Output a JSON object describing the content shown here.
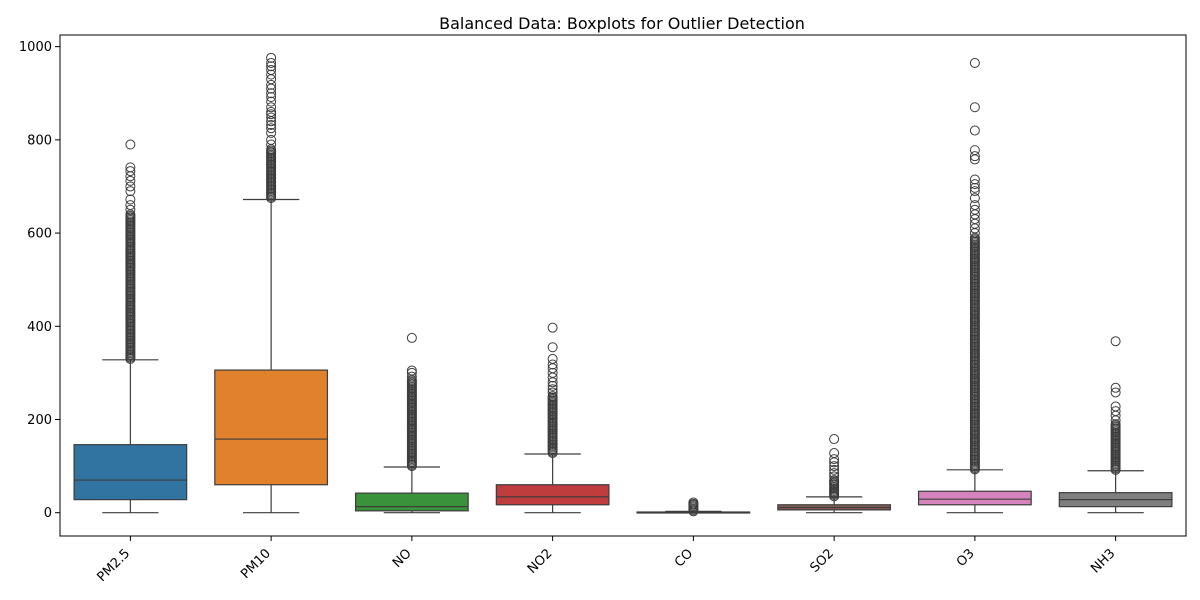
{
  "chart_data": {
    "type": "boxplot",
    "title": "Balanced Data: Boxplots for Outlier Detection",
    "xlabel": "",
    "ylabel": "",
    "ylim": [
      -50,
      1025
    ],
    "yticks": [
      0,
      200,
      400,
      600,
      800,
      1000
    ],
    "categories": [
      "PM2.5",
      "PM10",
      "NO",
      "NO2",
      "CO",
      "SO2",
      "O3",
      "NH3"
    ],
    "grid": false,
    "legend": "none",
    "series": [
      {
        "category": "PM2.5",
        "color": "#3274a1",
        "whisker_low": 0,
        "q1": 28,
        "median": 70,
        "q3": 146,
        "whisker_high": 328,
        "outlier_range": [
          330,
          640
        ],
        "outliers": [
          650,
          660,
          672,
          690,
          700,
          712,
          722,
          733,
          741,
          790
        ]
      },
      {
        "category": "PM10",
        "color": "#e1812c",
        "whisker_low": 0,
        "q1": 60,
        "median": 158,
        "q3": 306,
        "whisker_high": 672,
        "outlier_range": [
          675,
          780
        ],
        "outliers": [
          790,
          800,
          815,
          825,
          832,
          840,
          848,
          855,
          860,
          870,
          882,
          892,
          900,
          910,
          918,
          930,
          940,
          950,
          958,
          965,
          976
        ]
      },
      {
        "category": "NO",
        "color": "#3a923a",
        "whisker_low": 0,
        "q1": 4,
        "median": 13,
        "q3": 42,
        "whisker_high": 98,
        "outlier_range": [
          100,
          285
        ],
        "outliers": [
          292,
          300,
          305,
          375
        ]
      },
      {
        "category": "NO2",
        "color": "#c03d3e",
        "whisker_low": 0,
        "q1": 17,
        "median": 34,
        "q3": 60,
        "whisker_high": 126,
        "outlier_range": [
          128,
          250
        ],
        "outliers": [
          258,
          265,
          272,
          280,
          290,
          300,
          310,
          318,
          330,
          355,
          397
        ]
      },
      {
        "category": "CO",
        "color": "#9372b2",
        "whisker_low": 0,
        "q1": 0.3,
        "median": 0.8,
        "q3": 1.5,
        "whisker_high": 3,
        "outlier_range": [
          3,
          17
        ],
        "outliers": [
          19,
          22
        ]
      },
      {
        "category": "SO2",
        "color": "#845b53",
        "whisker_low": 0,
        "q1": 6,
        "median": 11,
        "q3": 17,
        "whisker_high": 34,
        "outlier_range": [
          35,
          70
        ],
        "outliers": [
          78,
          85,
          92,
          100,
          108,
          115,
          128,
          158
        ]
      },
      {
        "category": "O3",
        "color": "#d684bd",
        "whisker_low": 0,
        "q1": 17,
        "median": 29,
        "q3": 46,
        "whisker_high": 92,
        "outlier_range": [
          93,
          590
        ],
        "outliers": [
          600,
          610,
          620,
          630,
          640,
          650,
          660,
          675,
          690,
          697,
          705,
          715,
          758,
          765,
          778,
          820,
          870,
          965
        ]
      },
      {
        "category": "NH3",
        "color": "#7f7f7f",
        "whisker_low": 0,
        "q1": 13,
        "median": 28,
        "q3": 43,
        "whisker_high": 90,
        "outlier_range": [
          92,
          190
        ],
        "outliers": [
          198,
          208,
          218,
          228,
          258,
          268,
          368
        ]
      }
    ]
  }
}
